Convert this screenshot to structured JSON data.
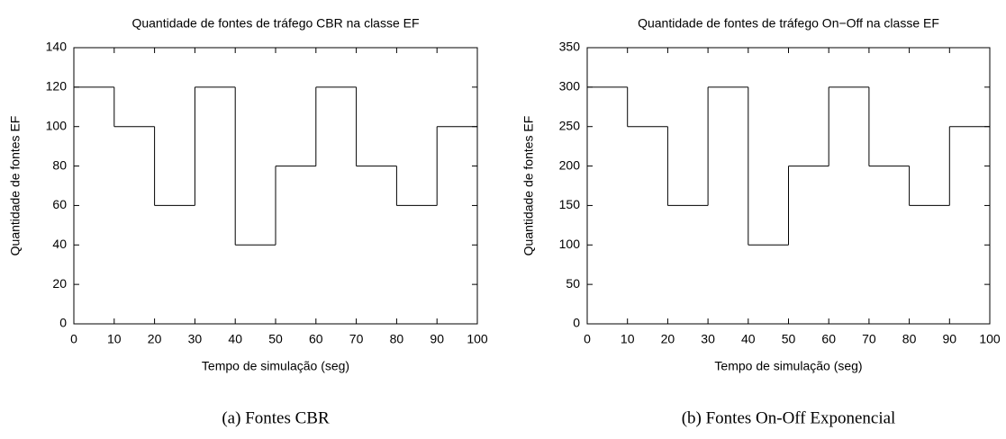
{
  "chart_data": [
    {
      "type": "step",
      "title": "Quantidade de fontes de tráfego CBR na classe EF",
      "xlabel": "Tempo de simulação (seg)",
      "ylabel": "Quantidade de fontes EF",
      "caption": "(a) Fontes CBR",
      "x": [
        0,
        10,
        20,
        30,
        40,
        50,
        60,
        70,
        80,
        90
      ],
      "values": [
        120,
        100,
        60,
        120,
        40,
        80,
        120,
        80,
        60,
        100
      ],
      "color": "#000000",
      "xlim": [
        0,
        100
      ],
      "xticks": [
        0,
        10,
        20,
        30,
        40,
        50,
        60,
        70,
        80,
        90,
        100
      ],
      "ylim": [
        0,
        140
      ],
      "yticks": [
        0,
        20,
        40,
        60,
        80,
        100,
        120,
        140
      ]
    },
    {
      "type": "step",
      "title": "Quantidade de fontes de tráfego On−Off na classe EF",
      "xlabel": "Tempo de simulação (seg)",
      "ylabel": "Quantidade de fontes EF",
      "caption": "(b) Fontes On-Off Exponencial",
      "x": [
        0,
        10,
        20,
        30,
        40,
        50,
        60,
        70,
        80,
        90
      ],
      "values": [
        300,
        250,
        150,
        300,
        100,
        200,
        300,
        200,
        150,
        250
      ],
      "color": "#000000",
      "xlim": [
        0,
        100
      ],
      "xticks": [
        0,
        10,
        20,
        30,
        40,
        50,
        60,
        70,
        80,
        90,
        100
      ],
      "ylim": [
        0,
        350
      ],
      "yticks": [
        0,
        50,
        100,
        150,
        200,
        250,
        300,
        350
      ]
    }
  ]
}
